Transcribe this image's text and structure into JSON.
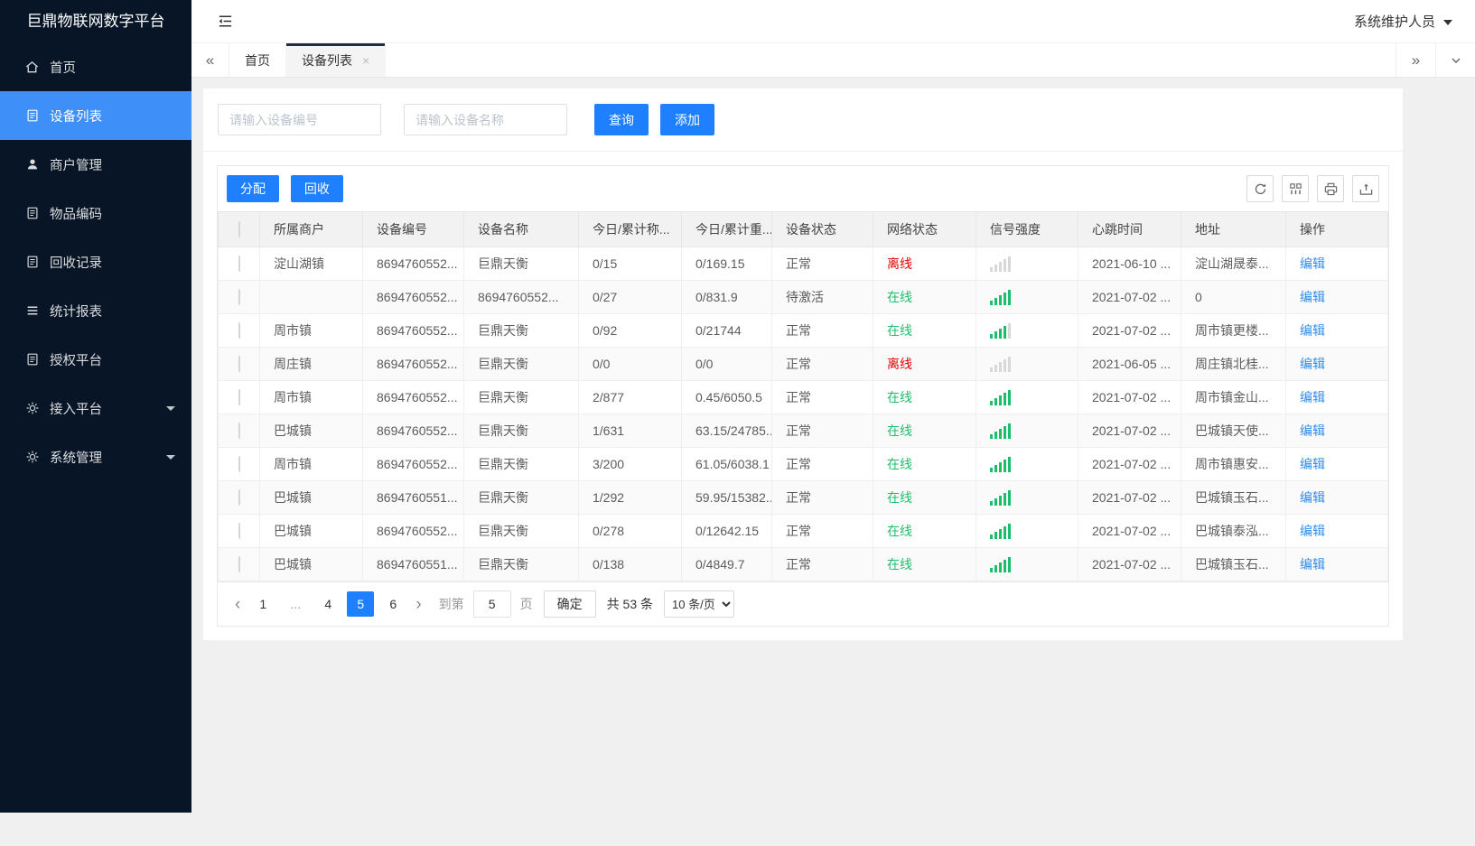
{
  "app": {
    "title": "巨鼎物联网数字平台",
    "user": "系统维护人员"
  },
  "colors": {
    "sidebar_bg": "#081527",
    "menu_active": "#3E8FF7",
    "button_blue": "#1E80FF",
    "link_blue": "#2D8CF0",
    "online_green": "#1CBE6B",
    "offline_red": "#e60000",
    "page_bg": "#f0f0f0"
  },
  "sidebar": {
    "items": [
      {
        "key": "home",
        "label": "首页",
        "icon": "home-icon",
        "active": false,
        "arrow": false
      },
      {
        "key": "device-list",
        "label": "设备列表",
        "icon": "doc-icon",
        "active": true,
        "arrow": false
      },
      {
        "key": "merchant-mgmt",
        "label": "商户管理",
        "icon": "user-icon",
        "active": false,
        "arrow": false
      },
      {
        "key": "item-code",
        "label": "物品编码",
        "icon": "doc-icon",
        "active": false,
        "arrow": false
      },
      {
        "key": "recycle-record",
        "label": "回收记录",
        "icon": "doc-icon",
        "active": false,
        "arrow": false
      },
      {
        "key": "stats-report",
        "label": "统计报表",
        "icon": "report-icon",
        "active": false,
        "arrow": false
      },
      {
        "key": "auth-platform",
        "label": "授权平台",
        "icon": "doc-icon",
        "active": false,
        "arrow": false
      },
      {
        "key": "access-platform",
        "label": "接入平台",
        "icon": "gear-icon",
        "active": false,
        "arrow": true
      },
      {
        "key": "system-mgmt",
        "label": "系统管理",
        "icon": "gear-icon",
        "active": false,
        "arrow": true
      }
    ]
  },
  "tabs": {
    "items": [
      {
        "key": "home",
        "label": "首页",
        "active": false,
        "closable": false
      },
      {
        "key": "device-list",
        "label": "设备列表",
        "active": true,
        "closable": true
      }
    ]
  },
  "search": {
    "device_no_placeholder": "请输入设备编号",
    "device_name_placeholder": "请输入设备名称",
    "query_label": "查询",
    "add_label": "添加"
  },
  "toolbar": {
    "assign_label": "分配",
    "recycle_label": "回收",
    "icons": [
      "refresh-icon",
      "columns-icon",
      "print-icon",
      "export-icon"
    ]
  },
  "table": {
    "columns": [
      "所属商户",
      "设备编号",
      "设备名称",
      "今日/累计称...",
      "今日/累计重...",
      "设备状态",
      "网络状态",
      "信号强度",
      "心跳时间",
      "地址",
      "操作"
    ],
    "rows": [
      {
        "merchant": "淀山湖镇",
        "device_no": "8694760552...",
        "device_name": "巨鼎天衡",
        "today_count": "0/15",
        "today_weight": "0/169.15",
        "device_status": "正常",
        "network_status": "离线",
        "online": false,
        "signal": 0,
        "heartbeat": "2021-06-10 ...",
        "address": "淀山湖晟泰...",
        "action": "编辑"
      },
      {
        "merchant": "",
        "device_no": "8694760552...",
        "device_name": "8694760552...",
        "today_count": "0/27",
        "today_weight": "0/831.9",
        "device_status": "待激活",
        "network_status": "在线",
        "online": true,
        "signal": 5,
        "heartbeat": "2021-07-02 ...",
        "address": "0",
        "action": "编辑"
      },
      {
        "merchant": "周市镇",
        "device_no": "8694760552...",
        "device_name": "巨鼎天衡",
        "today_count": "0/92",
        "today_weight": "0/21744",
        "device_status": "正常",
        "network_status": "在线",
        "online": true,
        "signal": 4,
        "heartbeat": "2021-07-02 ...",
        "address": "周市镇更楼...",
        "action": "编辑"
      },
      {
        "merchant": "周庄镇",
        "device_no": "8694760552...",
        "device_name": "巨鼎天衡",
        "today_count": "0/0",
        "today_weight": "0/0",
        "device_status": "正常",
        "network_status": "离线",
        "online": false,
        "signal": 0,
        "heartbeat": "2021-06-05 ...",
        "address": "周庄镇北桂...",
        "action": "编辑"
      },
      {
        "merchant": "周市镇",
        "device_no": "8694760552...",
        "device_name": "巨鼎天衡",
        "today_count": "2/877",
        "today_weight": "0.45/6050.5",
        "device_status": "正常",
        "network_status": "在线",
        "online": true,
        "signal": 5,
        "heartbeat": "2021-07-02 ...",
        "address": "周市镇金山...",
        "action": "编辑"
      },
      {
        "merchant": "巴城镇",
        "device_no": "8694760552...",
        "device_name": "巨鼎天衡",
        "today_count": "1/631",
        "today_weight": "63.15/24785...",
        "device_status": "正常",
        "network_status": "在线",
        "online": true,
        "signal": 5,
        "heartbeat": "2021-07-02 ...",
        "address": "巴城镇天使...",
        "action": "编辑"
      },
      {
        "merchant": "周市镇",
        "device_no": "8694760552...",
        "device_name": "巨鼎天衡",
        "today_count": "3/200",
        "today_weight": "61.05/6038.1",
        "device_status": "正常",
        "network_status": "在线",
        "online": true,
        "signal": 5,
        "heartbeat": "2021-07-02 ...",
        "address": "周市镇惠安...",
        "action": "编辑"
      },
      {
        "merchant": "巴城镇",
        "device_no": "8694760551...",
        "device_name": "巨鼎天衡",
        "today_count": "1/292",
        "today_weight": "59.95/15382...",
        "device_status": "正常",
        "network_status": "在线",
        "online": true,
        "signal": 5,
        "heartbeat": "2021-07-02 ...",
        "address": "巴城镇玉石...",
        "action": "编辑"
      },
      {
        "merchant": "巴城镇",
        "device_no": "8694760552...",
        "device_name": "巨鼎天衡",
        "today_count": "0/278",
        "today_weight": "0/12642.15",
        "device_status": "正常",
        "network_status": "在线",
        "online": true,
        "signal": 5,
        "heartbeat": "2021-07-02 ...",
        "address": "巴城镇泰泓...",
        "action": "编辑"
      },
      {
        "merchant": "巴城镇",
        "device_no": "8694760551...",
        "device_name": "巨鼎天衡",
        "today_count": "0/138",
        "today_weight": "0/4849.7",
        "device_status": "正常",
        "network_status": "在线",
        "online": true,
        "signal": 5,
        "heartbeat": "2021-07-02 ...",
        "address": "巴城镇玉石...",
        "action": "编辑"
      }
    ]
  },
  "pagination": {
    "pages": [
      {
        "label": "1",
        "active": false
      },
      {
        "label": "...",
        "active": false
      },
      {
        "label": "4",
        "active": false
      },
      {
        "label": "5",
        "active": true
      },
      {
        "label": "6",
        "active": false
      }
    ],
    "goto_label": "到第",
    "goto_value": "5",
    "page_label": "页",
    "confirm_label": "确定",
    "total_label": "共 53 条",
    "page_size": "10 条/页"
  }
}
